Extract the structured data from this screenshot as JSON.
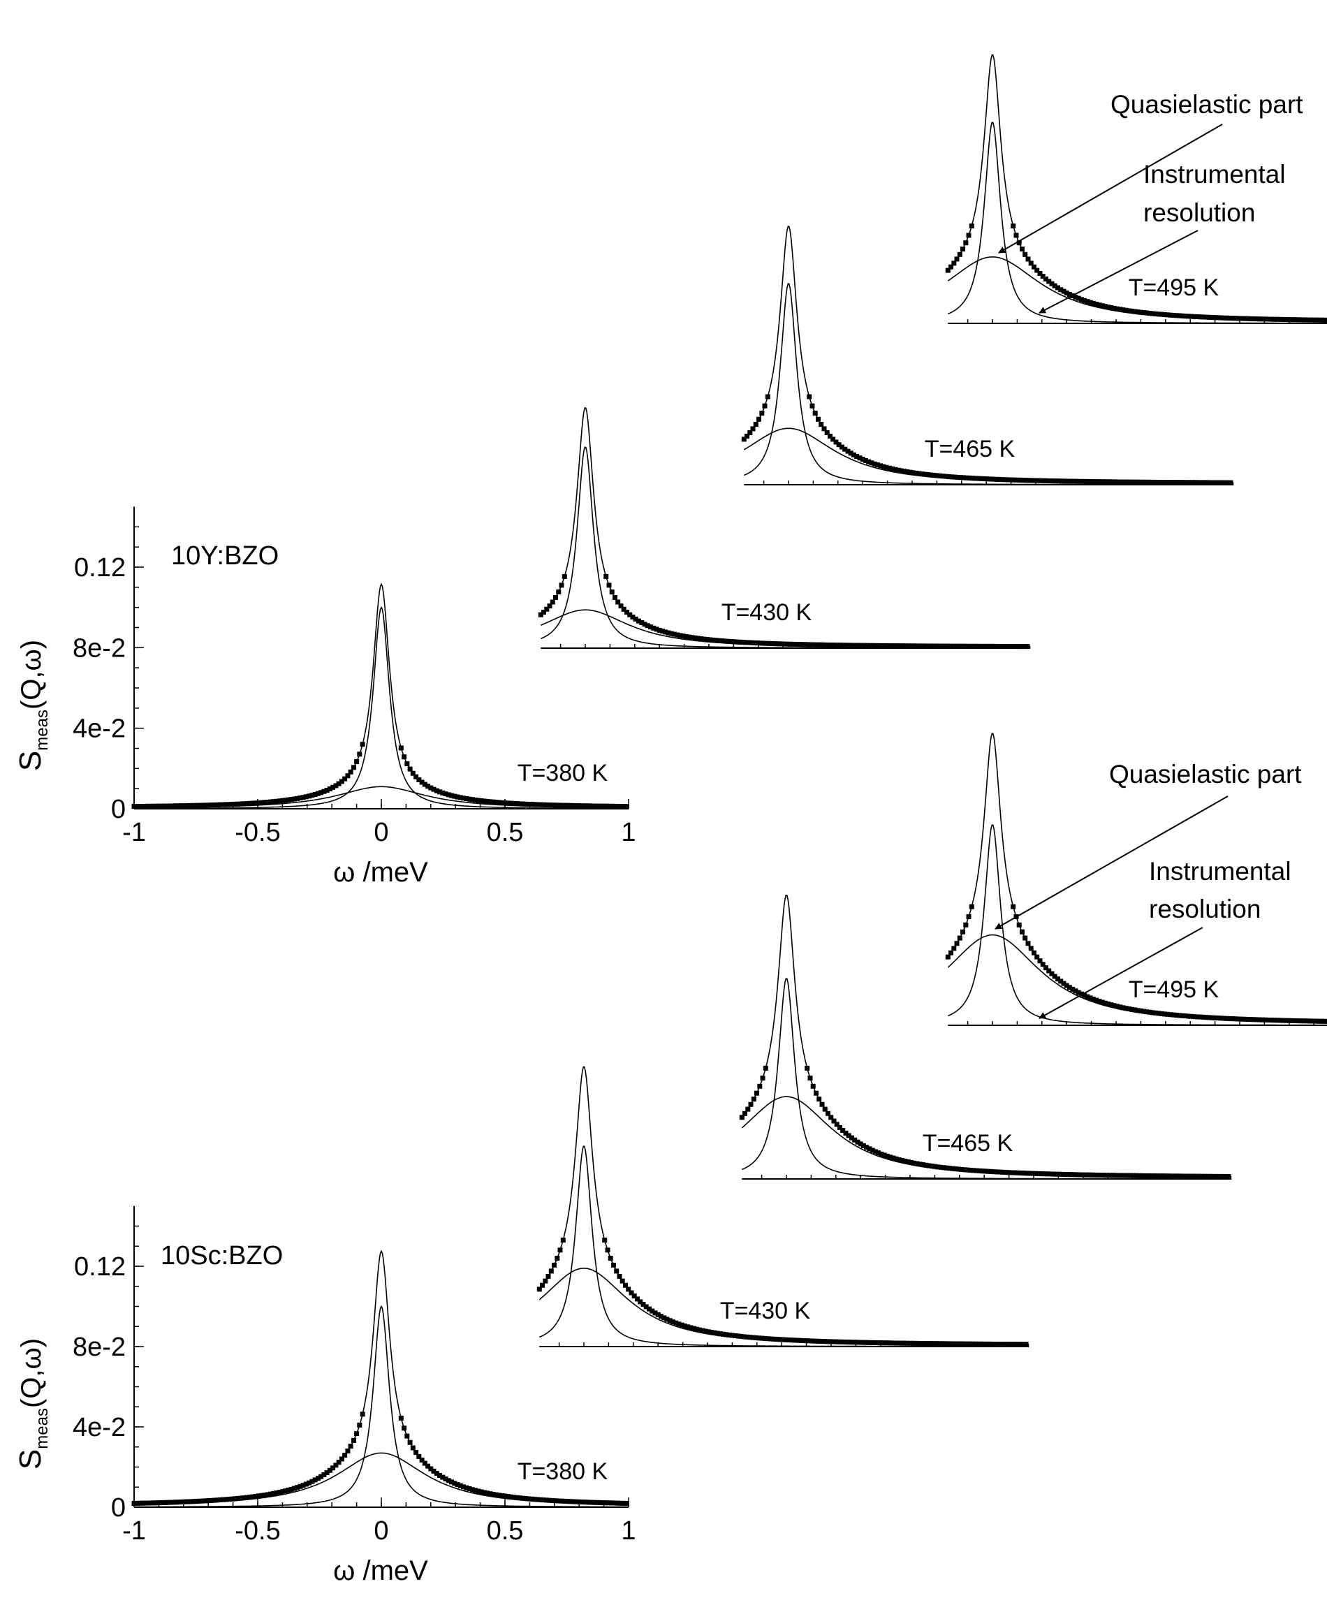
{
  "chart_data": [
    {
      "type": "line",
      "sample_label": "10Y:BZO",
      "xlabel": "ω /meV",
      "ylabel_main": "S",
      "ylabel_sub": "meas",
      "ylabel_tail": "(Q,ω)",
      "xlim": [
        -1,
        1
      ],
      "ylim": [
        0,
        0.15
      ],
      "x_tick_labels": [
        "-1",
        "-0.5",
        "0",
        "0.5",
        "1"
      ],
      "y_tick_labels": [
        "0",
        "4e-2",
        "8e-2",
        "0.12"
      ],
      "series": [
        {
          "name": "T=380 K",
          "temperature_label": "T=380 K",
          "elastic_hwhm": 0.04,
          "qe_peak": 0.011,
          "qe_hwhm": 0.22,
          "background": 0.0005
        },
        {
          "name": "T=430 K",
          "temperature_label": "T=430 K",
          "elastic_hwhm": 0.04,
          "qe_peak": 0.019,
          "qe_hwhm": 0.22,
          "background": 0.0005
        },
        {
          "name": "T=465 K",
          "temperature_label": "T=465 K",
          "elastic_hwhm": 0.04,
          "qe_peak": 0.028,
          "qe_hwhm": 0.23,
          "background": 0.0005
        },
        {
          "name": "T=495 K",
          "temperature_label": "T=495 K",
          "elastic_hwhm": 0.04,
          "qe_peak": 0.033,
          "qe_hwhm": 0.24,
          "background": 0.0005
        }
      ],
      "annotations": {
        "quasielastic": "Quasielastic part",
        "resolution_line1": "Instrumental",
        "resolution_line2": "resolution"
      }
    },
    {
      "type": "line",
      "sample_label": "10Sc:BZO",
      "xlabel": "ω /meV",
      "ylabel_main": "S",
      "ylabel_sub": "meas",
      "ylabel_tail": "(Q,ω)",
      "xlim": [
        -1,
        1
      ],
      "ylim": [
        0,
        0.15
      ],
      "x_tick_labels": [
        "-1",
        "-0.5",
        "0",
        "0.5",
        "1"
      ],
      "y_tick_labels": [
        "0",
        "4e-2",
        "8e-2",
        "0.12"
      ],
      "series": [
        {
          "name": "T=380 K",
          "temperature_label": "T=380 K",
          "elastic_hwhm": 0.04,
          "qe_peak": 0.027,
          "qe_hwhm": 0.22,
          "background": 0.0005
        },
        {
          "name": "T=430 K",
          "temperature_label": "T=430 K",
          "elastic_hwhm": 0.04,
          "qe_peak": 0.039,
          "qe_hwhm": 0.22,
          "background": 0.0005
        },
        {
          "name": "T=465 K",
          "temperature_label": "T=465 K",
          "elastic_hwhm": 0.04,
          "qe_peak": 0.041,
          "qe_hwhm": 0.23,
          "background": 0.0005
        },
        {
          "name": "T=495 K",
          "temperature_label": "T=495 K",
          "elastic_hwhm": 0.04,
          "qe_peak": 0.045,
          "qe_hwhm": 0.24,
          "background": 0.0005
        }
      ],
      "annotations": {
        "quasielastic": "Quasielastic part",
        "resolution_line1": "Instrumental",
        "resolution_line2": "resolution"
      }
    }
  ]
}
